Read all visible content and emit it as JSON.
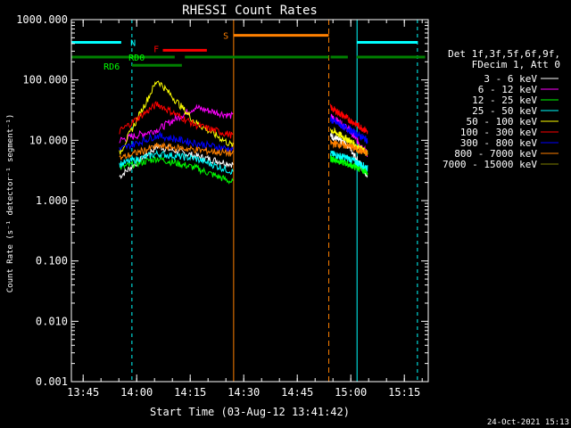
{
  "chart_data": {
    "type": "line",
    "title": "RHESSI Count Rates",
    "xlabel": "Start Time (03-Aug-12 13:41:42)",
    "ylabel": "Count Rate (s⁻¹ detector⁻¹ segment⁻¹)",
    "date_stamp": "24-Oct-2021 15:13",
    "y_scale": "log",
    "ylim": [
      0.001,
      1000
    ],
    "xlim": [
      "13:41:42",
      "15:21:42"
    ],
    "x_ticks": [
      "13:45",
      "14:00",
      "14:15",
      "14:30",
      "14:45",
      "15:00",
      "15:15"
    ],
    "y_ticks": [
      "1000.000",
      "100.000",
      "10.000",
      "1.000",
      "0.100",
      "0.010",
      "0.001"
    ],
    "legend_header": [
      "Det 1f,3f,5f,6f,9f,",
      "FDecim 1, Att 0"
    ],
    "series": [
      {
        "name": "3 - 6 keV",
        "color": "#ffffff",
        "before": [
          2.5,
          8,
          5.5,
          4
        ],
        "after": [
          12,
          8,
          2.5
        ]
      },
      {
        "name": "6 - 12 keV",
        "color": "#ff00ff",
        "before": [
          10,
          15,
          35,
          25
        ],
        "after": [
          25,
          15,
          6
        ]
      },
      {
        "name": "12 - 25 keV",
        "color": "#00ff00",
        "before": [
          3.5,
          5,
          3.5,
          2
        ],
        "after": [
          5,
          4,
          3
        ]
      },
      {
        "name": "25 - 50 keV",
        "color": "#00ffff",
        "before": [
          4,
          6,
          5,
          3
        ],
        "after": [
          6,
          5,
          3.5
        ]
      },
      {
        "name": "50 - 100 keV",
        "color": "#ffff00",
        "before": [
          6,
          100,
          20,
          8
        ],
        "after": [
          15,
          10,
          6
        ]
      },
      {
        "name": "100 - 300 keV",
        "color": "#ff0000",
        "before": [
          14,
          40,
          18,
          12
        ],
        "after": [
          35,
          22,
          14
        ]
      },
      {
        "name": "300 - 800 keV",
        "color": "#0000ff",
        "before": [
          7,
          12,
          9,
          7
        ],
        "after": [
          22,
          15,
          10
        ]
      },
      {
        "name": "800 - 7000 keV",
        "color": "#ff8000",
        "before": [
          5,
          8,
          7,
          6
        ],
        "after": [
          9,
          8,
          6
        ]
      },
      {
        "name": "7000 - 15000 keV",
        "color": "#808000",
        "before": [],
        "after": []
      }
    ],
    "gaps": [
      {
        "label": "N",
        "color": "#00ffff",
        "start": "13:41:42",
        "end": "13:58:40"
      },
      {
        "label": "N",
        "color": "#00ffff",
        "start": "15:01:45",
        "end": "15:18:40"
      },
      {
        "label": "S",
        "color": "#ff8000",
        "start": "14:27:10",
        "end": "14:53:50"
      }
    ],
    "bars": [
      {
        "label": "N",
        "color": "#00ffff",
        "level": 420,
        "start": "13:41:42",
        "end": "13:55:40"
      },
      {
        "label": "N",
        "color": "#00ffff",
        "level": 420,
        "start": "15:01:45",
        "end": "15:18:40"
      },
      {
        "label": "S",
        "color": "#ff8000",
        "level": 550,
        "start": "14:27:10",
        "end": "14:53:50"
      },
      {
        "label": "F",
        "color": "#ff0000",
        "level": 310,
        "start": "14:07:20",
        "end": "14:19:40"
      },
      {
        "label": "RD0",
        "color": "#008000",
        "level": 240,
        "start": "13:41:42",
        "end": "15:20:50"
      },
      {
        "label": "RD6",
        "color": "#008000",
        "level": 175,
        "start": "13:58:40",
        "end": "14:12:40"
      }
    ],
    "bar_labels": [
      {
        "text": "N",
        "color": "#00ffff"
      },
      {
        "text": "F",
        "color": "#ff0000"
      },
      {
        "text": "S",
        "color": "#ff8000"
      },
      {
        "text": "RD0",
        "color": "#00ff00"
      },
      {
        "text": "RD6",
        "color": "#00ff00"
      }
    ]
  }
}
